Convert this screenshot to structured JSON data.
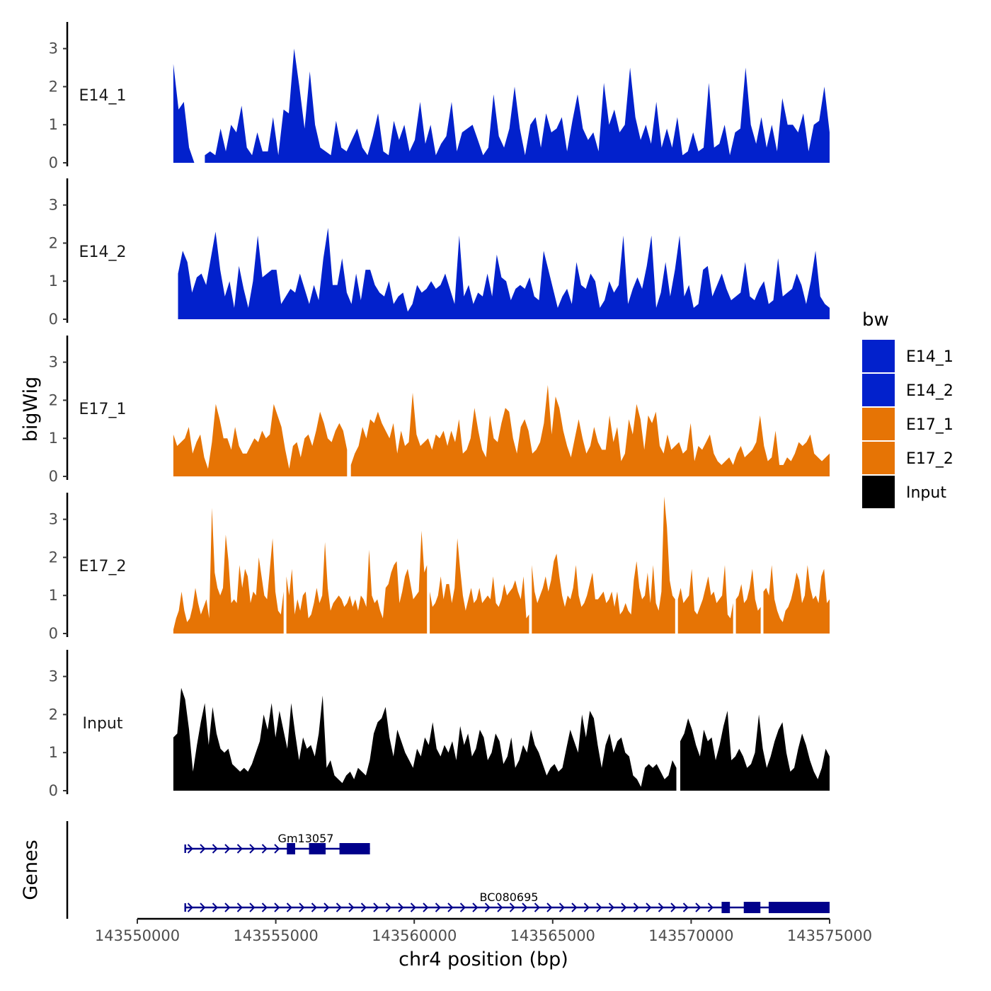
{
  "chart_data": {
    "type": "area",
    "ylabel": "bigWig",
    "xlabel": "chr4 position (bp)",
    "chromosome": "chr4",
    "xlim": [
      143550000,
      143575000
    ],
    "x_ticks": [
      143550000,
      143555000,
      143560000,
      143565000,
      143570000,
      143575000
    ],
    "x_tick_labels": [
      "143550000",
      "143555000",
      "143560000",
      "143565000",
      "143570000",
      "143575000"
    ],
    "ylim": [
      0,
      3.7
    ],
    "y_ticks": [
      0,
      1,
      2,
      3
    ],
    "y_tick_labels": [
      "0",
      "1",
      "2",
      "3"
    ],
    "region": [
      143551300,
      143575000
    ],
    "legend": {
      "title": "bw",
      "position": "right",
      "entries": [
        {
          "label": "E14_1",
          "color": "#0221CC"
        },
        {
          "label": "E14_2",
          "color": "#0221CC"
        },
        {
          "label": "E17_1",
          "color": "#E67405"
        },
        {
          "label": "E17_2",
          "color": "#E67405"
        },
        {
          "label": "Input",
          "color": "#000000"
        }
      ]
    },
    "series": [
      {
        "name": "E14_1",
        "color": "#0221CC",
        "values": [
          2.6,
          1.4,
          1.6,
          0.4,
          0,
          0,
          0.2,
          0.3,
          0.2,
          0.9,
          0.3,
          1.0,
          0.8,
          1.5,
          0.4,
          0.2,
          0.8,
          0.3,
          0.3,
          1.2,
          0.2,
          1.4,
          1.3,
          3.0,
          2.0,
          0.9,
          2.4,
          1.0,
          0.4,
          0.3,
          0.2,
          1.1,
          0.4,
          0.3,
          0.6,
          0.9,
          0.4,
          0.2,
          0.7,
          1.3,
          0.3,
          0.2,
          1.1,
          0.6,
          1.0,
          0.3,
          0.6,
          1.6,
          0.5,
          1.0,
          0.2,
          0.5,
          0.7,
          1.6,
          0.3,
          0.8,
          0.9,
          1.0,
          0.6,
          0.2,
          0.4,
          1.8,
          0.7,
          0.4,
          0.9,
          2.0,
          0.9,
          0.2,
          1.0,
          1.2,
          0.4,
          1.3,
          0.8,
          0.9,
          1.2,
          0.3,
          1.1,
          1.8,
          0.9,
          0.6,
          0.8,
          0.3,
          2.1,
          1.0,
          1.4,
          0.8,
          1.0,
          2.5,
          1.2,
          0.6,
          1.0,
          0.5,
          1.6,
          0.4,
          0.9,
          0.4,
          1.2,
          0.2,
          0.3,
          0.8,
          0.3,
          0.4,
          2.1,
          0.4,
          0.5,
          1.0,
          0.2,
          0.8,
          0.9,
          2.5,
          1.0,
          0.5,
          1.2,
          0.4,
          1.0,
          0.3,
          1.7,
          1.0,
          1.0,
          0.8,
          1.3,
          0.3,
          1.0,
          1.1,
          2.0,
          0.8
        ],
        "gaps": [
          [
            5,
            6
          ]
        ]
      },
      {
        "name": "E14_2",
        "color": "#0221CC",
        "values": [
          0.2,
          1.2,
          1.8,
          1.5,
          0.7,
          1.1,
          1.2,
          0.9,
          1.6,
          2.3,
          1.3,
          0.6,
          1.0,
          0.3,
          1.4,
          0.8,
          0.3,
          1.0,
          2.2,
          1.1,
          1.2,
          1.3,
          1.3,
          0.4,
          0.6,
          0.8,
          0.7,
          1.2,
          0.8,
          0.4,
          0.9,
          0.5,
          1.6,
          2.4,
          0.9,
          0.9,
          1.6,
          0.7,
          0.4,
          1.2,
          0.5,
          1.3,
          1.3,
          0.9,
          0.7,
          0.6,
          1.0,
          0.4,
          0.6,
          0.7,
          0.2,
          0.4,
          0.9,
          0.7,
          0.8,
          1.0,
          0.8,
          0.9,
          1.2,
          0.8,
          0.4,
          2.2,
          0.6,
          0.9,
          0.4,
          0.7,
          0.6,
          1.2,
          0.6,
          1.7,
          1.1,
          1.0,
          0.5,
          0.8,
          0.9,
          0.8,
          1.1,
          0.6,
          0.5,
          1.8,
          1.3,
          0.8,
          0.3,
          0.6,
          0.8,
          0.4,
          1.5,
          0.9,
          0.8,
          1.2,
          1.0,
          0.3,
          0.5,
          1.0,
          0.7,
          0.9,
          2.2,
          0.4,
          0.8,
          1.1,
          0.8,
          1.4,
          2.2,
          0.3,
          0.7,
          1.5,
          0.6,
          1.3,
          2.2,
          0.6,
          0.9,
          0.3,
          0.4,
          1.3,
          1.4,
          0.6,
          0.9,
          1.2,
          0.8,
          0.5,
          0.6,
          0.7,
          1.5,
          0.6,
          0.5,
          0.8,
          1.0,
          0.4,
          0.5,
          1.6,
          0.6,
          0.7,
          0.8,
          1.2,
          0.9,
          0.4,
          1.0,
          1.8,
          0.6,
          0.4,
          0.3
        ],
        "gaps": [
          [
            0,
            1
          ]
        ]
      },
      {
        "name": "E17_1",
        "color": "#E67405",
        "values": [
          1.1,
          0.8,
          0.9,
          1.0,
          1.3,
          0.6,
          0.9,
          1.1,
          0.5,
          0.2,
          0.9,
          1.9,
          1.5,
          1.0,
          1.0,
          0.7,
          1.3,
          0.8,
          0.6,
          0.6,
          0.8,
          1.0,
          0.9,
          1.2,
          1.0,
          1.1,
          1.9,
          1.6,
          1.3,
          0.7,
          0.2,
          0.8,
          0.9,
          0.5,
          1.0,
          1.1,
          0.8,
          1.2,
          1.7,
          1.4,
          1.0,
          0.9,
          1.2,
          1.4,
          1.2,
          0.7,
          0.3,
          0.6,
          0.8,
          1.3,
          1.0,
          1.5,
          1.4,
          1.7,
          1.4,
          1.2,
          1.0,
          1.4,
          0.6,
          1.2,
          0.8,
          0.9,
          2.2,
          1.1,
          0.8,
          0.9,
          1.0,
          0.7,
          1.1,
          1.0,
          1.2,
          0.8,
          1.2,
          0.9,
          1.5,
          0.6,
          0.7,
          1.0,
          1.8,
          1.2,
          0.7,
          0.5,
          1.6,
          1.0,
          0.9,
          1.4,
          1.8,
          1.7,
          1.0,
          0.6,
          1.3,
          1.5,
          1.2,
          0.6,
          0.7,
          0.9,
          1.4,
          2.4,
          1.1,
          2.1,
          1.8,
          1.2,
          0.8,
          0.5,
          1.0,
          1.5,
          1.0,
          0.6,
          0.8,
          1.3,
          0.9,
          0.7,
          0.7,
          1.6,
          0.9,
          1.3,
          0.4,
          0.6,
          1.5,
          1.1,
          1.9,
          1.5,
          0.7,
          1.6,
          1.4,
          1.7,
          0.8,
          0.6,
          1.1,
          0.7,
          0.8,
          0.9,
          0.6,
          0.7,
          1.4,
          0.4,
          0.8,
          0.7,
          0.9,
          1.1,
          0.6,
          0.4,
          0.3,
          0.4,
          0.5,
          0.3,
          0.6,
          0.8,
          0.5,
          0.6,
          0.7,
          0.9,
          1.6,
          0.8,
          0.4,
          0.5,
          1.2,
          0.3,
          0.3,
          0.5,
          0.4,
          0.6,
          0.9,
          0.8,
          0.9,
          1.1,
          0.6,
          0.5,
          0.4,
          0.5,
          0.6
        ],
        "gaps": [
          [
            45,
            46
          ]
        ]
      },
      {
        "name": "E17_2",
        "color": "#E67405",
        "values": [
          0.1,
          0.4,
          0.6,
          1.1,
          0.6,
          0.3,
          0.4,
          0.7,
          1.2,
          0.8,
          0.5,
          0.7,
          0.9,
          0.4,
          3.3,
          1.6,
          1.2,
          1.0,
          1.2,
          2.6,
          1.9,
          0.8,
          0.9,
          0.8,
          1.8,
          1.2,
          1.7,
          1.5,
          0.8,
          1.1,
          1.0,
          2.0,
          1.5,
          1.0,
          0.9,
          1.7,
          2.5,
          1.1,
          0.6,
          0.5,
          1.1,
          1.5,
          1.0,
          1.7,
          0.5,
          0.9,
          0.6,
          1.0,
          1.1,
          0.4,
          0.5,
          0.8,
          1.2,
          0.8,
          1.0,
          2.4,
          1.2,
          0.6,
          0.8,
          0.9,
          1.0,
          0.9,
          0.7,
          0.8,
          1.0,
          0.7,
          0.9,
          0.6,
          1.0,
          0.9,
          0.7,
          2.2,
          1.0,
          0.8,
          0.9,
          0.6,
          0.4,
          1.2,
          1.3,
          1.6,
          1.8,
          1.9,
          0.8,
          1.1,
          1.5,
          1.7,
          1.3,
          0.9,
          1.0,
          1.1,
          2.7,
          1.6,
          1.8,
          1.1,
          0.7,
          0.8,
          1.0,
          1.5,
          0.9,
          1.3,
          1.3,
          0.8,
          1.2,
          2.5,
          1.7,
          1.0,
          0.6,
          0.9,
          1.2,
          0.8,
          0.9,
          1.2,
          0.8,
          0.9,
          1.0,
          0.9,
          1.5,
          0.8,
          0.7,
          0.9,
          1.3,
          1.0,
          1.1,
          1.2,
          1.4,
          1.1,
          0.9,
          1.5,
          0.4,
          0.5,
          1.8,
          1.1,
          0.8,
          1.0,
          1.2,
          1.5,
          1.1,
          1.4,
          1.9,
          2.1,
          1.5,
          1.0,
          0.7,
          1.0,
          0.9,
          1.2,
          1.8,
          1.0,
          0.7,
          0.8,
          1.0,
          1.3,
          1.6,
          0.9,
          0.9,
          1.0,
          1.1,
          0.8,
          0.9,
          1.1,
          0.7,
          1.1,
          0.5,
          0.6,
          0.8,
          0.6,
          0.5,
          1.4,
          1.9,
          1.2,
          0.9,
          1.0,
          1.6,
          0.8,
          1.8,
          0.8,
          0.6,
          1.1,
          3.6,
          2.8,
          1.4,
          1.0,
          0.9,
          0.9,
          1.2,
          0.8,
          0.9,
          1.0,
          1.7,
          0.6,
          0.5,
          0.7,
          0.9,
          1.2,
          1.5,
          1.0,
          1.1,
          0.8,
          0.9,
          1.0,
          1.8,
          0.5,
          0.4,
          0.8,
          0.9,
          1.0,
          1.3,
          0.8,
          0.9,
          1.2,
          1.7,
          0.9,
          0.6,
          0.7,
          1.1,
          1.2,
          1.0,
          1.8,
          0.9,
          0.6,
          0.4,
          0.3,
          0.6,
          0.7,
          0.9,
          1.2,
          1.6,
          1.4,
          0.8,
          1.0,
          1.8,
          1.2,
          0.9,
          1.0,
          0.8,
          1.5,
          1.7,
          0.8,
          0.9
        ],
        "gaps": [
          [
            40,
            41
          ],
          [
            92,
            93
          ],
          [
            129,
            130
          ],
          [
            182,
            183
          ],
          [
            203,
            204
          ],
          [
            213,
            214
          ]
        ]
      },
      {
        "name": "Input",
        "color": "#000000",
        "values": [
          1.4,
          1.5,
          2.7,
          2.4,
          1.6,
          0.5,
          1.2,
          1.8,
          2.3,
          1.2,
          2.2,
          1.5,
          1.1,
          1.0,
          1.1,
          0.7,
          0.6,
          0.5,
          0.6,
          0.5,
          0.7,
          1.0,
          1.3,
          2.0,
          1.6,
          2.3,
          1.4,
          2.1,
          1.6,
          1.1,
          2.3,
          1.5,
          0.8,
          1.4,
          1.1,
          1.2,
          0.9,
          1.5,
          2.5,
          0.6,
          0.8,
          0.4,
          0.3,
          0.2,
          0.4,
          0.5,
          0.3,
          0.6,
          0.5,
          0.4,
          0.8,
          1.5,
          1.8,
          1.9,
          2.2,
          1.4,
          0.9,
          1.6,
          1.3,
          1.0,
          0.8,
          0.6,
          1.1,
          0.9,
          1.4,
          1.2,
          1.8,
          1.1,
          0.9,
          1.2,
          1.0,
          1.3,
          0.8,
          1.7,
          1.2,
          1.5,
          0.9,
          1.1,
          1.6,
          1.4,
          0.8,
          1.0,
          1.5,
          1.3,
          0.7,
          0.9,
          1.4,
          0.6,
          0.8,
          1.2,
          1.0,
          1.6,
          1.2,
          1.0,
          0.7,
          0.4,
          0.6,
          0.7,
          0.5,
          0.6,
          1.1,
          1.6,
          1.3,
          1.0,
          2.0,
          1.4,
          2.1,
          1.9,
          1.2,
          0.6,
          1.2,
          1.5,
          1.0,
          1.3,
          1.4,
          1.0,
          0.9,
          0.4,
          0.3,
          0.1,
          0.6,
          0.7,
          0.6,
          0.7,
          0.5,
          0.3,
          0.4,
          0.8,
          0.6,
          1.3,
          1.5,
          1.9,
          1.6,
          1.2,
          0.9,
          1.6,
          1.3,
          1.4,
          0.8,
          1.2,
          1.7,
          2.1,
          0.8,
          0.9,
          1.1,
          0.9,
          0.6,
          0.7,
          1.0,
          2.0,
          1.1,
          0.6,
          0.9,
          1.3,
          1.6,
          1.8,
          1.0,
          0.5,
          0.6,
          1.1,
          1.5,
          1.2,
          0.8,
          0.5,
          0.3,
          0.6,
          1.1,
          0.9
        ],
        "gaps": [
          [
            128,
            129
          ]
        ]
      }
    ],
    "genes_track": {
      "label": "Genes",
      "color": "#00008B",
      "genes": [
        {
          "name": "Gm13057",
          "start": 143551700,
          "end": 143558400,
          "strand": "+",
          "exons": [
            [
              143551700,
              143551760
            ],
            [
              143555400,
              143555700
            ],
            [
              143556200,
              143556800
            ],
            [
              143557300,
              143558400
            ]
          ]
        },
        {
          "name": "BC080695",
          "start": 143551700,
          "end": 143575000,
          "strand": "+",
          "exons": [
            [
              143551700,
              143551760
            ],
            [
              143571100,
              143571400
            ],
            [
              143571900,
              143572500
            ],
            [
              143572800,
              143575000
            ]
          ]
        }
      ]
    }
  }
}
